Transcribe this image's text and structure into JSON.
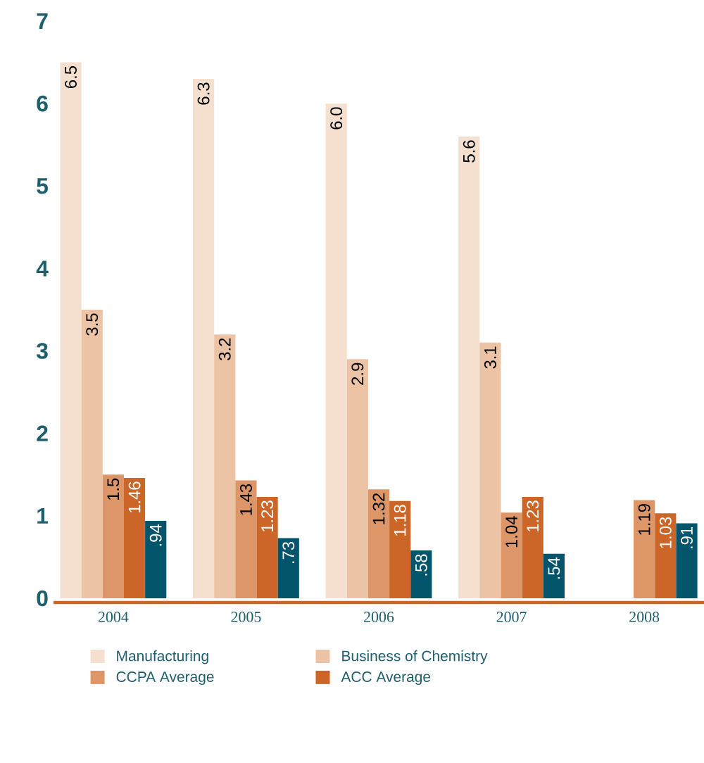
{
  "chart_data": {
    "type": "bar",
    "categories": [
      "2004",
      "2005",
      "2006",
      "2007",
      "2008"
    ],
    "ylim": [
      0,
      7
    ],
    "yticks": [
      0,
      1,
      2,
      3,
      4,
      5,
      6,
      7
    ],
    "legend": "bottom",
    "series": [
      {
        "name": "Manufacturing",
        "color": "#f5e0d0",
        "values": [
          6.5,
          6.3,
          6.0,
          5.6,
          null
        ],
        "value_labels": [
          "6.5",
          "6.3",
          "6.0",
          "5.6",
          null
        ]
      },
      {
        "name": "Business of Chemistry",
        "color": "#edc3a6",
        "values": [
          3.5,
          3.2,
          2.9,
          3.1,
          null
        ],
        "value_labels": [
          "3.5",
          "3.2",
          "2.9",
          "3.1",
          null
        ]
      },
      {
        "name": "CCPA Average",
        "color": "#dc9668",
        "values": [
          1.5,
          1.43,
          1.32,
          1.04,
          1.19
        ],
        "value_labels": [
          "1.5",
          "1.43",
          "1.32",
          "1.04",
          "1.19"
        ]
      },
      {
        "name": "ACC Average",
        "color": "#cc6628",
        "values": [
          1.46,
          1.23,
          1.18,
          1.23,
          1.03
        ],
        "value_labels": [
          "1.46",
          "1.23",
          "1.18",
          "1.23",
          "1.03"
        ]
      },
      {
        "color": "#03556b",
        "values": [
          0.94,
          0.73,
          0.58,
          0.54,
          0.91
        ],
        "value_labels": [
          ".94",
          ".73",
          ".58",
          ".54",
          ".91"
        ]
      }
    ]
  }
}
